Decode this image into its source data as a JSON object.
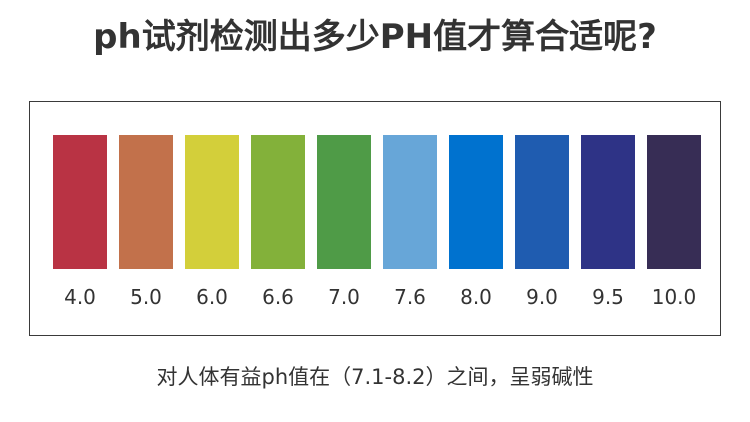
{
  "title": "ph试剂检测出多少PH值才算合适呢?",
  "caption": "对人体有益ph值在（7.1-8.2）之间，呈弱碱性",
  "scale": {
    "items": [
      {
        "label": "4.0",
        "color": "#b93344"
      },
      {
        "label": "5.0",
        "color": "#c2714b"
      },
      {
        "label": "6.0",
        "color": "#d3cf3a"
      },
      {
        "label": "6.6",
        "color": "#83b13a"
      },
      {
        "label": "7.0",
        "color": "#4f9b47"
      },
      {
        "label": "7.6",
        "color": "#67a6d8"
      },
      {
        "label": "8.0",
        "color": "#0072cf"
      },
      {
        "label": "9.0",
        "color": "#1f5cb0"
      },
      {
        "label": "9.5",
        "color": "#2e3386"
      },
      {
        "label": "10.0",
        "color": "#372d55"
      }
    ]
  }
}
